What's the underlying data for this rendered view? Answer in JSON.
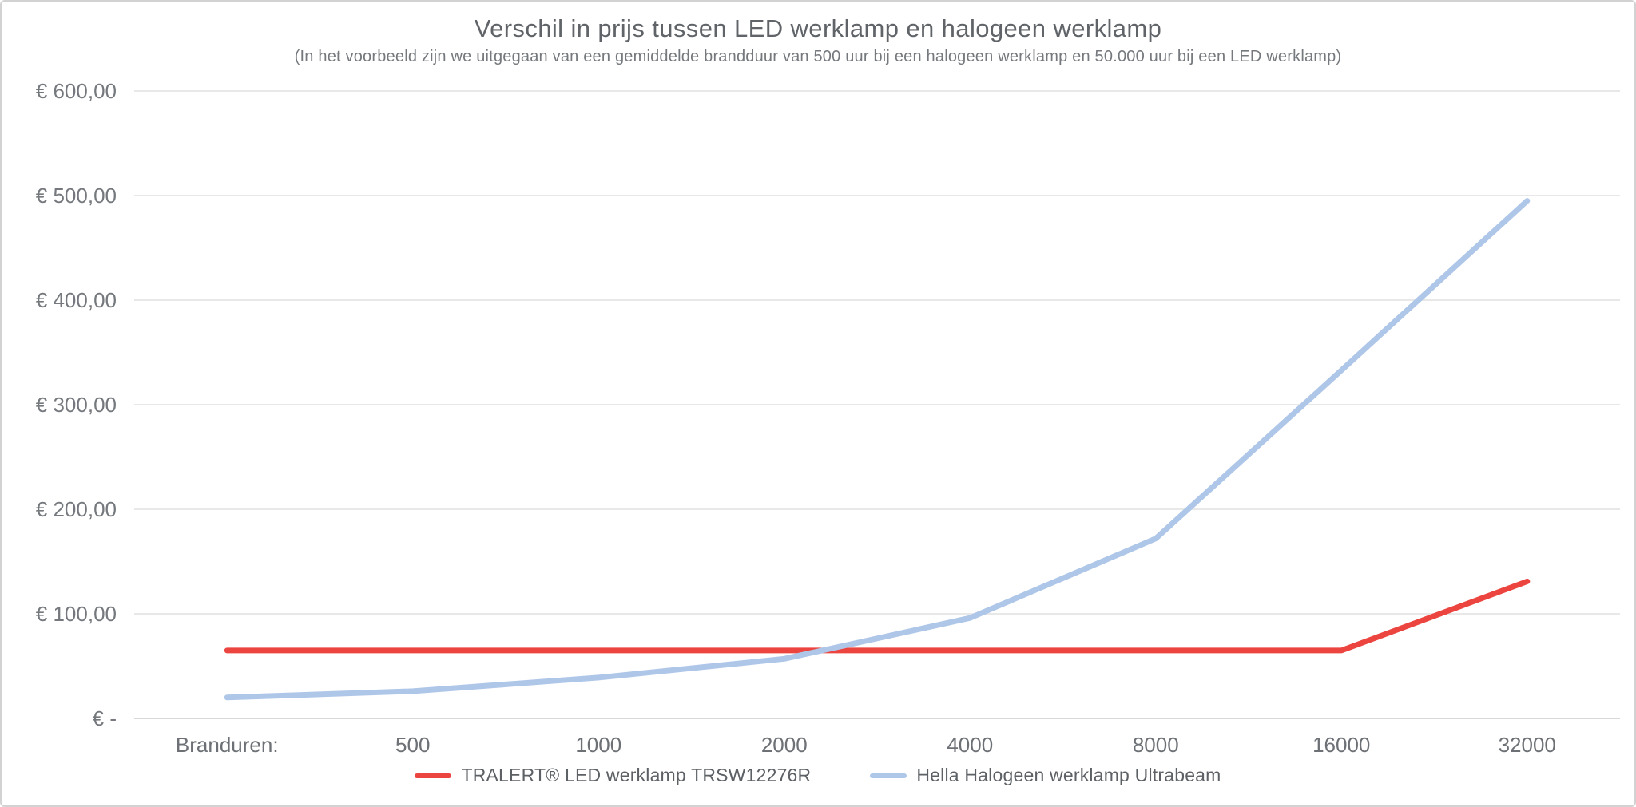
{
  "header": {
    "title": "Verschil in prijs tussen LED werklamp en halogeen werklamp",
    "subtitle": "(In het voorbeeld zijn we uitgegaan van een gemiddelde brandduur van 500 uur bij een halogeen werklamp en 50.000 uur bij een LED werklamp)"
  },
  "chart_data": {
    "type": "line",
    "categories": [
      "Branduren:",
      "500",
      "1000",
      "2000",
      "4000",
      "8000",
      "16000",
      "32000"
    ],
    "series": [
      {
        "name": "TRALERT® LED werklamp TRSW12276R",
        "color": "#ec4540",
        "values": [
          65,
          65,
          65,
          65,
          65,
          65,
          65,
          131
        ]
      },
      {
        "name": "Hella Halogeen werklamp Ultrabeam",
        "color": "#aec6e8",
        "values": [
          20,
          26,
          39,
          57,
          96,
          172,
          333,
          495
        ]
      }
    ],
    "y_axis": {
      "range": [
        0,
        600
      ],
      "tick_interval": 100,
      "ticks": [
        {
          "value": 600,
          "label": "€ 600,00"
        },
        {
          "value": 500,
          "label": "€ 500,00"
        },
        {
          "value": 400,
          "label": "€ 400,00"
        },
        {
          "value": 300,
          "label": "€ 300,00"
        },
        {
          "value": 200,
          "label": "€ 200,00"
        },
        {
          "value": 100,
          "label": "€ 100,00"
        },
        {
          "value": 0,
          "label": "€ -"
        }
      ]
    },
    "x_axis": {
      "title_inline": "Branduren:"
    },
    "grid": true,
    "legend_position": "bottom",
    "colors": {
      "gridline": "#e8e8e8",
      "zero_line": "#d8d8d8",
      "axis_text": "#75797d"
    }
  }
}
